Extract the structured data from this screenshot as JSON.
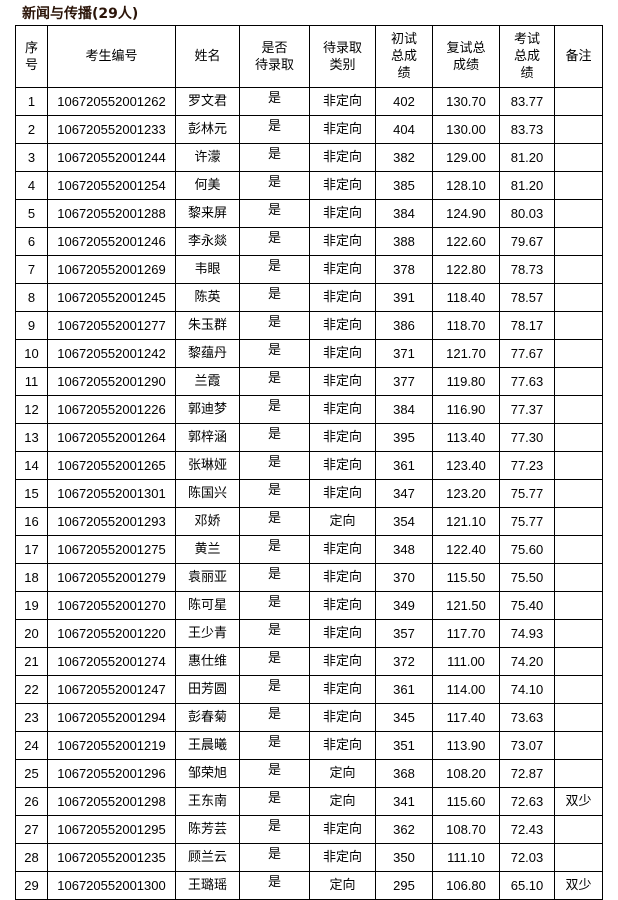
{
  "title": "新闻与传播(29人)",
  "headers": [
    "序\n号",
    "考生编号",
    "姓名",
    "是否\n待录取",
    "待录取\n类别",
    "初试\n总成\n绩",
    "复试总\n成绩",
    "考试\n总成\n绩",
    "备注"
  ],
  "rows": [
    [
      "1",
      "106720552001262",
      "罗文君",
      "是",
      "非定向",
      "402",
      "130.70",
      "83.77",
      ""
    ],
    [
      "2",
      "106720552001233",
      "彭林元",
      "是",
      "非定向",
      "404",
      "130.00",
      "83.73",
      ""
    ],
    [
      "3",
      "106720552001244",
      "许濛",
      "是",
      "非定向",
      "382",
      "129.00",
      "81.20",
      ""
    ],
    [
      "4",
      "106720552001254",
      "何美",
      "是",
      "非定向",
      "385",
      "128.10",
      "81.20",
      ""
    ],
    [
      "5",
      "106720552001288",
      "黎来屏",
      "是",
      "非定向",
      "384",
      "124.90",
      "80.03",
      ""
    ],
    [
      "6",
      "106720552001246",
      "李永燚",
      "是",
      "非定向",
      "388",
      "122.60",
      "79.67",
      ""
    ],
    [
      "7",
      "106720552001269",
      "韦眼",
      "是",
      "非定向",
      "378",
      "122.80",
      "78.73",
      ""
    ],
    [
      "8",
      "106720552001245",
      "陈英",
      "是",
      "非定向",
      "391",
      "118.40",
      "78.57",
      ""
    ],
    [
      "9",
      "106720552001277",
      "朱玉群",
      "是",
      "非定向",
      "386",
      "118.70",
      "78.17",
      ""
    ],
    [
      "10",
      "106720552001242",
      "黎蕴丹",
      "是",
      "非定向",
      "371",
      "121.70",
      "77.67",
      ""
    ],
    [
      "11",
      "106720552001290",
      "兰霞",
      "是",
      "非定向",
      "377",
      "119.80",
      "77.63",
      ""
    ],
    [
      "12",
      "106720552001226",
      "郭迪梦",
      "是",
      "非定向",
      "384",
      "116.90",
      "77.37",
      ""
    ],
    [
      "13",
      "106720552001264",
      "郭梓涵",
      "是",
      "非定向",
      "395",
      "113.40",
      "77.30",
      ""
    ],
    [
      "14",
      "106720552001265",
      "张琳娅",
      "是",
      "非定向",
      "361",
      "123.40",
      "77.23",
      ""
    ],
    [
      "15",
      "106720552001301",
      "陈国兴",
      "是",
      "非定向",
      "347",
      "123.20",
      "75.77",
      ""
    ],
    [
      "16",
      "106720552001293",
      "邓娇",
      "是",
      "定向",
      "354",
      "121.10",
      "75.77",
      ""
    ],
    [
      "17",
      "106720552001275",
      "黄兰",
      "是",
      "非定向",
      "348",
      "122.40",
      "75.60",
      ""
    ],
    [
      "18",
      "106720552001279",
      "袁丽亚",
      "是",
      "非定向",
      "370",
      "115.50",
      "75.50",
      ""
    ],
    [
      "19",
      "106720552001270",
      "陈可星",
      "是",
      "非定向",
      "349",
      "121.50",
      "75.40",
      ""
    ],
    [
      "20",
      "106720552001220",
      "王少青",
      "是",
      "非定向",
      "357",
      "117.70",
      "74.93",
      ""
    ],
    [
      "21",
      "106720552001274",
      "惠仕维",
      "是",
      "非定向",
      "372",
      "111.00",
      "74.20",
      ""
    ],
    [
      "22",
      "106720552001247",
      "田芳圆",
      "是",
      "非定向",
      "361",
      "114.00",
      "74.10",
      ""
    ],
    [
      "23",
      "106720552001294",
      "彭春菊",
      "是",
      "非定向",
      "345",
      "117.40",
      "73.63",
      ""
    ],
    [
      "24",
      "106720552001219",
      "王晨曦",
      "是",
      "非定向",
      "351",
      "113.90",
      "73.07",
      ""
    ],
    [
      "25",
      "106720552001296",
      "邹荣旭",
      "是",
      "定向",
      "368",
      "108.20",
      "72.87",
      ""
    ],
    [
      "26",
      "106720552001298",
      "王东南",
      "是",
      "定向",
      "341",
      "115.60",
      "72.63",
      "双少"
    ],
    [
      "27",
      "106720552001295",
      "陈芳芸",
      "是",
      "非定向",
      "362",
      "108.70",
      "72.43",
      ""
    ],
    [
      "28",
      "106720552001235",
      "顾兰云",
      "是",
      "非定向",
      "350",
      "111.10",
      "72.03",
      ""
    ],
    [
      "29",
      "106720552001300",
      "王璐瑶",
      "是",
      "定向",
      "295",
      "106.80",
      "65.10",
      "双少"
    ]
  ]
}
